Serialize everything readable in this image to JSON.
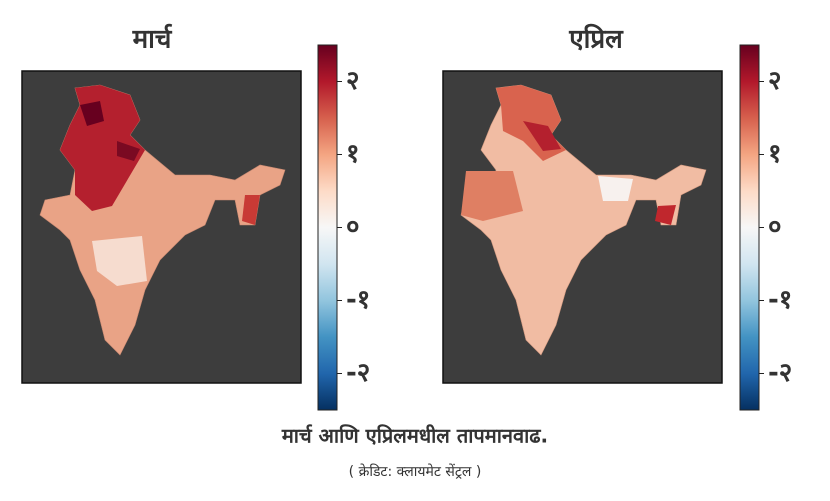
{
  "maps": [
    {
      "title": "मार्च",
      "colorbar": {
        "range": [
          -2.5,
          2.5
        ],
        "ticks": [
          {
            "value": 2,
            "label": "२"
          },
          {
            "value": 1,
            "label": "१"
          },
          {
            "value": 0,
            "label": "०"
          },
          {
            "value": -1,
            "label": "-१"
          },
          {
            "value": -2,
            "label": "-२"
          }
        ]
      }
    },
    {
      "title": "एप्रिल",
      "colorbar": {
        "range": [
          -2.5,
          2.5
        ],
        "ticks": [
          {
            "value": 2,
            "label": "२"
          },
          {
            "value": 1,
            "label": "१"
          },
          {
            "value": 0,
            "label": "०"
          },
          {
            "value": -1,
            "label": "-१"
          },
          {
            "value": -2,
            "label": "-२"
          }
        ]
      }
    }
  ],
  "caption": "मार्च आणि एप्रिलमधील तापमानवाढ.",
  "credit": "( क्रेडिट: क्लायमेट सेंट्रल )"
}
